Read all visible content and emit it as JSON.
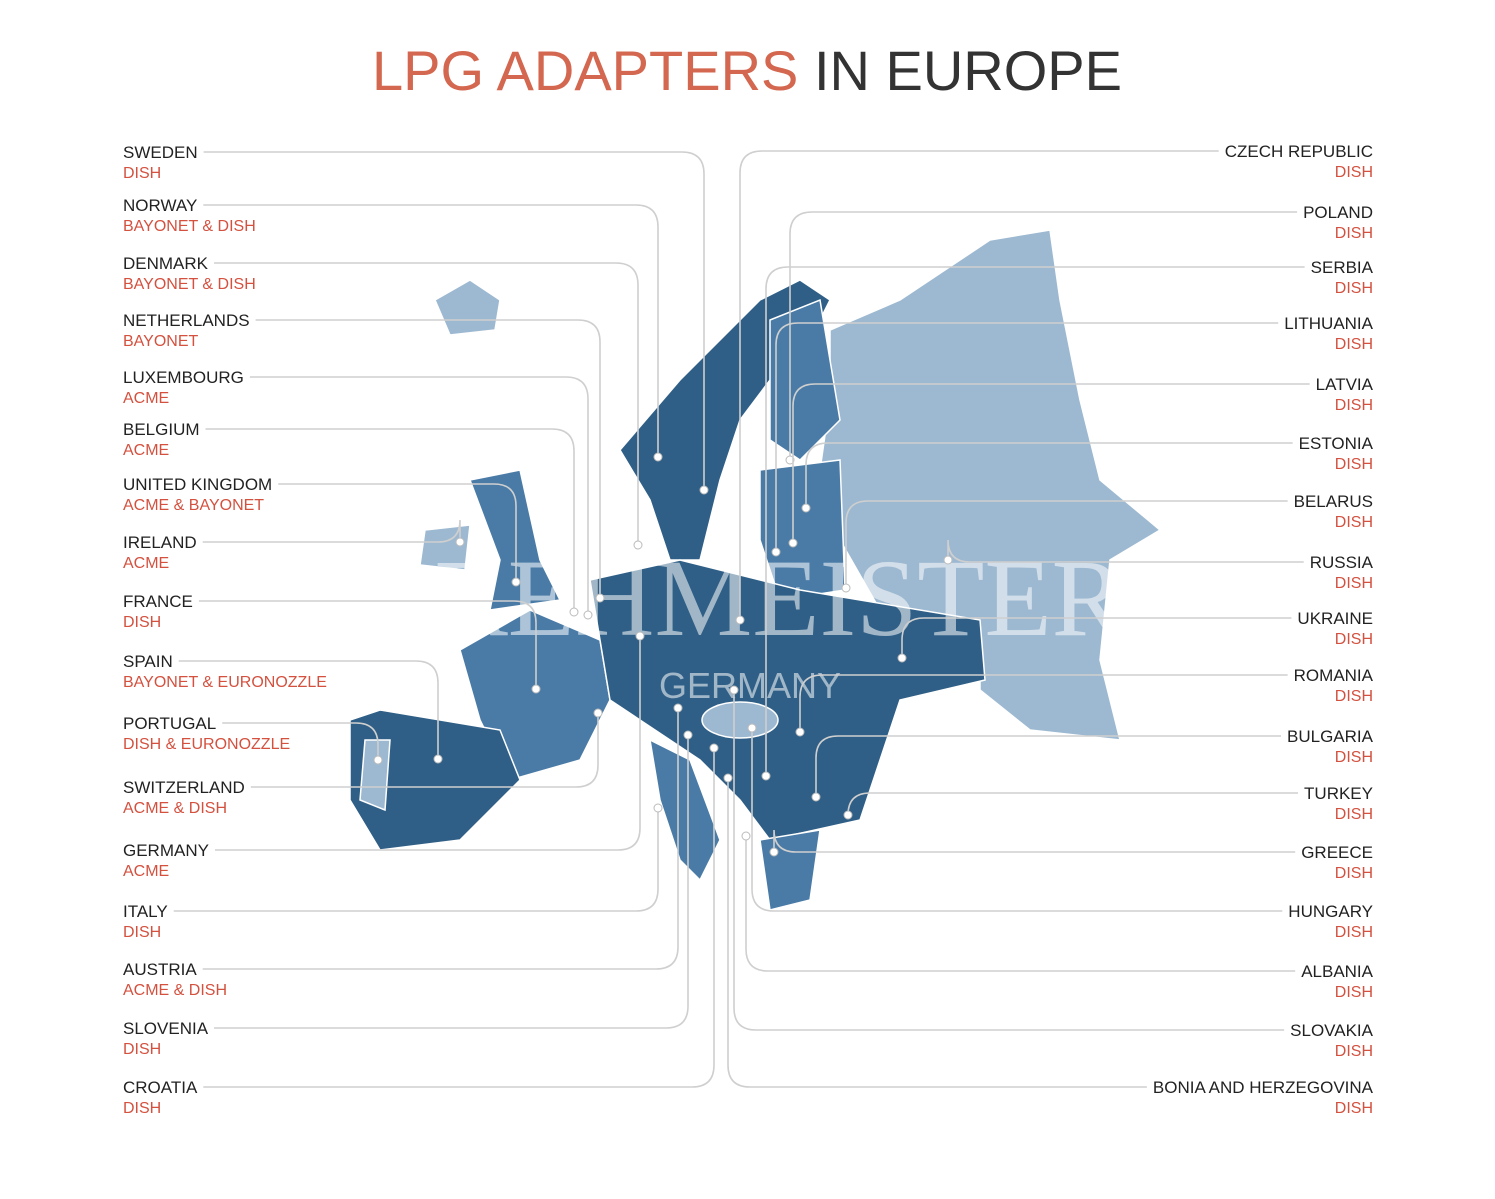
{
  "title": {
    "highlight": "LPG ADAPTERS",
    "rest": "IN EUROPE"
  },
  "left": [
    {
      "country": "SWEDEN",
      "adapter": "DISH"
    },
    {
      "country": "NORWAY",
      "adapter": "BAYONET & DISH"
    },
    {
      "country": "DENMARK",
      "adapter": "BAYONET & DISH"
    },
    {
      "country": "NETHERLANDS",
      "adapter": "BAYONET"
    },
    {
      "country": "LUXEMBOURG",
      "adapter": "ACME"
    },
    {
      "country": "BELGIUM",
      "adapter": "ACME"
    },
    {
      "country": "UNITED KINGDOM",
      "adapter": "ACME & BAYONET"
    },
    {
      "country": "IRELAND",
      "adapter": "ACME"
    },
    {
      "country": "FRANCE",
      "adapter": "DISH"
    },
    {
      "country": "SPAIN",
      "adapter": "BAYONET & EURONOZZLE"
    },
    {
      "country": "PORTUGAL",
      "adapter": "DISH & EURONOZZLE"
    },
    {
      "country": "SWITZERLAND",
      "adapter": "ACME & DISH"
    },
    {
      "country": "GERMANY",
      "adapter": "ACME"
    },
    {
      "country": "ITALY",
      "adapter": "DISH"
    },
    {
      "country": "AUSTRIA",
      "adapter": "ACME & DISH"
    },
    {
      "country": "SLOVENIA",
      "adapter": "DISH"
    },
    {
      "country": "CROATIA",
      "adapter": "DISH"
    }
  ],
  "right": [
    {
      "country": "CZECH REPUBLIC",
      "adapter": "DISH"
    },
    {
      "country": "POLAND",
      "adapter": "DISH"
    },
    {
      "country": "SERBIA",
      "adapter": "DISH"
    },
    {
      "country": "LITHUANIA",
      "adapter": "DISH"
    },
    {
      "country": "LATVIA",
      "adapter": "DISH"
    },
    {
      "country": "ESTONIA",
      "adapter": "DISH"
    },
    {
      "country": "BELARUS",
      "adapter": "DISH"
    },
    {
      "country": "RUSSIA",
      "adapter": "DISH"
    },
    {
      "country": "UKRAINE",
      "adapter": "DISH"
    },
    {
      "country": "ROMANIA",
      "adapter": "DISH"
    },
    {
      "country": "BULGARIA",
      "adapter": "DISH"
    },
    {
      "country": "TURKEY",
      "adapter": "DISH"
    },
    {
      "country": "GREECE",
      "adapter": "DISH"
    },
    {
      "country": "HUNGARY",
      "adapter": "DISH"
    },
    {
      "country": "ALBANIA",
      "adapter": "DISH"
    },
    {
      "country": "SLOVAKIA",
      "adapter": "DISH"
    },
    {
      "country": "BONIA AND HERZEGOVINA",
      "adapter": "DISH"
    }
  ],
  "watermark": {
    "brand": "DREHMEISTER",
    "sub": "GERMANY",
    "mark": "®"
  }
}
